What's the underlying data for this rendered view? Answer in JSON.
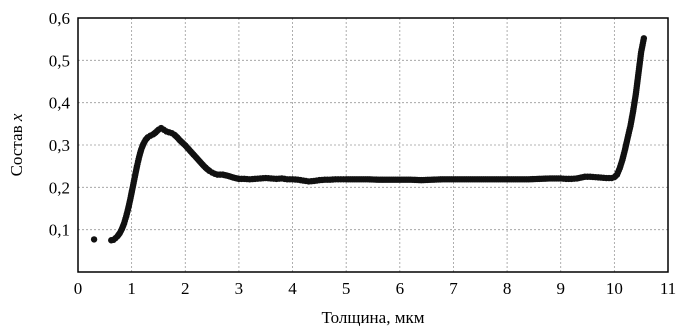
{
  "chart_data": {
    "type": "scatter",
    "xlabel": "Толщина, мкм",
    "ylabel_main": "Состав ",
    "ylabel_var": "x",
    "xlim": [
      0,
      11
    ],
    "ylim": [
      0,
      0.6
    ],
    "x_ticks": [
      "0",
      "1",
      "2",
      "3",
      "4",
      "5",
      "6",
      "7",
      "8",
      "9",
      "10",
      "11"
    ],
    "y_ticks": [
      "0,1",
      "0,2",
      "0,3",
      "0,4",
      "0,5",
      "0,6"
    ],
    "grid": true,
    "series": [
      {
        "color": "#111111",
        "points": [
          [
            0.3,
            0.077
          ],
          [
            0.62,
            0.075
          ],
          [
            0.66,
            0.076
          ],
          [
            0.7,
            0.08
          ],
          [
            0.74,
            0.085
          ],
          [
            0.78,
            0.092
          ],
          [
            0.82,
            0.102
          ],
          [
            0.86,
            0.115
          ],
          [
            0.9,
            0.132
          ],
          [
            0.94,
            0.152
          ],
          [
            0.98,
            0.175
          ],
          [
            1.02,
            0.2
          ],
          [
            1.06,
            0.225
          ],
          [
            1.1,
            0.25
          ],
          [
            1.14,
            0.272
          ],
          [
            1.18,
            0.29
          ],
          [
            1.22,
            0.303
          ],
          [
            1.26,
            0.312
          ],
          [
            1.3,
            0.318
          ],
          [
            1.35,
            0.322
          ],
          [
            1.4,
            0.325
          ],
          [
            1.45,
            0.33
          ],
          [
            1.5,
            0.336
          ],
          [
            1.55,
            0.34
          ],
          [
            1.6,
            0.336
          ],
          [
            1.65,
            0.332
          ],
          [
            1.7,
            0.33
          ],
          [
            1.75,
            0.328
          ],
          [
            1.8,
            0.324
          ],
          [
            1.85,
            0.318
          ],
          [
            1.9,
            0.311
          ],
          [
            1.95,
            0.305
          ],
          [
            2.0,
            0.299
          ],
          [
            2.05,
            0.292
          ],
          [
            2.1,
            0.285
          ],
          [
            2.15,
            0.278
          ],
          [
            2.2,
            0.271
          ],
          [
            2.25,
            0.264
          ],
          [
            2.3,
            0.257
          ],
          [
            2.35,
            0.25
          ],
          [
            2.4,
            0.244
          ],
          [
            2.45,
            0.239
          ],
          [
            2.5,
            0.235
          ],
          [
            2.55,
            0.232
          ],
          [
            2.6,
            0.23
          ],
          [
            2.7,
            0.23
          ],
          [
            2.8,
            0.227
          ],
          [
            2.9,
            0.223
          ],
          [
            3.0,
            0.22
          ],
          [
            3.1,
            0.22
          ],
          [
            3.2,
            0.219
          ],
          [
            3.3,
            0.22
          ],
          [
            3.4,
            0.221
          ],
          [
            3.5,
            0.222
          ],
          [
            3.6,
            0.221
          ],
          [
            3.7,
            0.22
          ],
          [
            3.8,
            0.221
          ],
          [
            3.9,
            0.219
          ],
          [
            4.0,
            0.219
          ],
          [
            4.1,
            0.218
          ],
          [
            4.2,
            0.216
          ],
          [
            4.3,
            0.214
          ],
          [
            4.4,
            0.215
          ],
          [
            4.5,
            0.217
          ],
          [
            4.6,
            0.218
          ],
          [
            4.7,
            0.218
          ],
          [
            4.8,
            0.219
          ],
          [
            4.9,
            0.219
          ],
          [
            5.0,
            0.219
          ],
          [
            5.2,
            0.219
          ],
          [
            5.4,
            0.219
          ],
          [
            5.6,
            0.218
          ],
          [
            5.8,
            0.218
          ],
          [
            6.0,
            0.218
          ],
          [
            6.2,
            0.218
          ],
          [
            6.4,
            0.217
          ],
          [
            6.6,
            0.218
          ],
          [
            6.8,
            0.219
          ],
          [
            7.0,
            0.219
          ],
          [
            7.2,
            0.219
          ],
          [
            7.4,
            0.219
          ],
          [
            7.6,
            0.219
          ],
          [
            7.8,
            0.219
          ],
          [
            8.0,
            0.219
          ],
          [
            8.2,
            0.219
          ],
          [
            8.4,
            0.219
          ],
          [
            8.6,
            0.22
          ],
          [
            8.8,
            0.221
          ],
          [
            9.0,
            0.221
          ],
          [
            9.1,
            0.22
          ],
          [
            9.2,
            0.22
          ],
          [
            9.3,
            0.221
          ],
          [
            9.45,
            0.225
          ],
          [
            9.55,
            0.225
          ],
          [
            9.65,
            0.224
          ],
          [
            9.75,
            0.223
          ],
          [
            9.85,
            0.222
          ],
          [
            9.95,
            0.222
          ],
          [
            10.0,
            0.224
          ],
          [
            10.05,
            0.23
          ],
          [
            10.1,
            0.245
          ],
          [
            10.15,
            0.265
          ],
          [
            10.2,
            0.29
          ],
          [
            10.25,
            0.318
          ],
          [
            10.3,
            0.345
          ],
          [
            10.35,
            0.38
          ],
          [
            10.4,
            0.42
          ],
          [
            10.45,
            0.47
          ],
          [
            10.5,
            0.52
          ],
          [
            10.55,
            0.552
          ]
        ]
      }
    ]
  }
}
